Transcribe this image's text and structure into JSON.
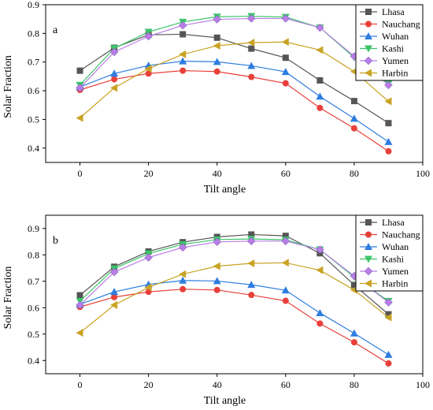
{
  "colors": {
    "Lhasa": "#555555",
    "Nauchang": "#e8403a",
    "Wuhan": "#2e7de0",
    "Kashi": "#3cc46a",
    "Yumen": "#b77ee6",
    "Harbin": "#c9a323"
  },
  "chart_data": [
    {
      "type": "line",
      "panel_label": "a",
      "xlabel": "Tilt angle",
      "ylabel": "Solar Fraction",
      "xlim": [
        -10,
        100
      ],
      "ylim": [
        0.35,
        0.9
      ],
      "xticks": [
        0,
        20,
        40,
        60,
        80,
        100
      ],
      "yticks": [
        0.4,
        0.5,
        0.6,
        0.7,
        0.8,
        0.9
      ],
      "legend_position": "top-right",
      "grid": false,
      "x": [
        0,
        10,
        20,
        30,
        40,
        50,
        60,
        70,
        80,
        90
      ],
      "series": [
        {
          "name": "Lhasa",
          "marker": "square",
          "values": [
            0.67,
            0.75,
            0.795,
            0.797,
            0.785,
            0.747,
            0.715,
            0.636,
            0.564,
            0.487
          ]
        },
        {
          "name": "Nauchang",
          "marker": "circle",
          "values": [
            0.603,
            0.64,
            0.66,
            0.67,
            0.667,
            0.648,
            0.626,
            0.54,
            0.469,
            0.389
          ]
        },
        {
          "name": "Wuhan",
          "marker": "triangle-up",
          "values": [
            0.613,
            0.66,
            0.688,
            0.703,
            0.701,
            0.687,
            0.666,
            0.58,
            0.503,
            0.422
          ]
        },
        {
          "name": "Kashi",
          "marker": "triangle-down",
          "values": [
            0.62,
            0.748,
            0.805,
            0.84,
            0.858,
            0.86,
            0.857,
            0.82,
            0.716,
            0.625
          ]
        },
        {
          "name": "Yumen",
          "marker": "diamond",
          "values": [
            0.61,
            0.735,
            0.79,
            0.828,
            0.849,
            0.852,
            0.852,
            0.82,
            0.72,
            0.62
          ]
        },
        {
          "name": "Harbin",
          "marker": "triangle-left",
          "values": [
            0.505,
            0.61,
            0.677,
            0.727,
            0.757,
            0.768,
            0.77,
            0.742,
            0.667,
            0.563
          ]
        }
      ]
    },
    {
      "type": "line",
      "panel_label": "b",
      "xlabel": "Tilt angle",
      "ylabel": "Solar Fraction",
      "xlim": [
        -10,
        100
      ],
      "ylim": [
        0.35,
        0.95
      ],
      "xticks": [
        0,
        20,
        40,
        60,
        80,
        100
      ],
      "yticks": [
        0.4,
        0.5,
        0.6,
        0.7,
        0.8,
        0.9
      ],
      "legend_position": "top-right",
      "grid": false,
      "x": [
        0,
        10,
        20,
        30,
        40,
        50,
        60,
        70,
        80,
        90
      ],
      "series": [
        {
          "name": "Lhasa",
          "marker": "square",
          "values": [
            0.647,
            0.755,
            0.813,
            0.848,
            0.868,
            0.877,
            0.872,
            0.806,
            0.686,
            0.575
          ]
        },
        {
          "name": "Nauchang",
          "marker": "circle",
          "values": [
            0.603,
            0.64,
            0.66,
            0.67,
            0.667,
            0.648,
            0.626,
            0.54,
            0.469,
            0.389
          ]
        },
        {
          "name": "Wuhan",
          "marker": "triangle-up",
          "values": [
            0.613,
            0.66,
            0.688,
            0.703,
            0.701,
            0.687,
            0.666,
            0.58,
            0.503,
            0.422
          ]
        },
        {
          "name": "Kashi",
          "marker": "triangle-down",
          "values": [
            0.625,
            0.748,
            0.805,
            0.84,
            0.858,
            0.86,
            0.857,
            0.82,
            0.716,
            0.625
          ]
        },
        {
          "name": "Yumen",
          "marker": "diamond",
          "values": [
            0.61,
            0.735,
            0.79,
            0.828,
            0.849,
            0.852,
            0.852,
            0.82,
            0.72,
            0.62
          ]
        },
        {
          "name": "Harbin",
          "marker": "triangle-left",
          "values": [
            0.505,
            0.61,
            0.677,
            0.727,
            0.757,
            0.768,
            0.77,
            0.742,
            0.667,
            0.563
          ]
        }
      ]
    }
  ]
}
